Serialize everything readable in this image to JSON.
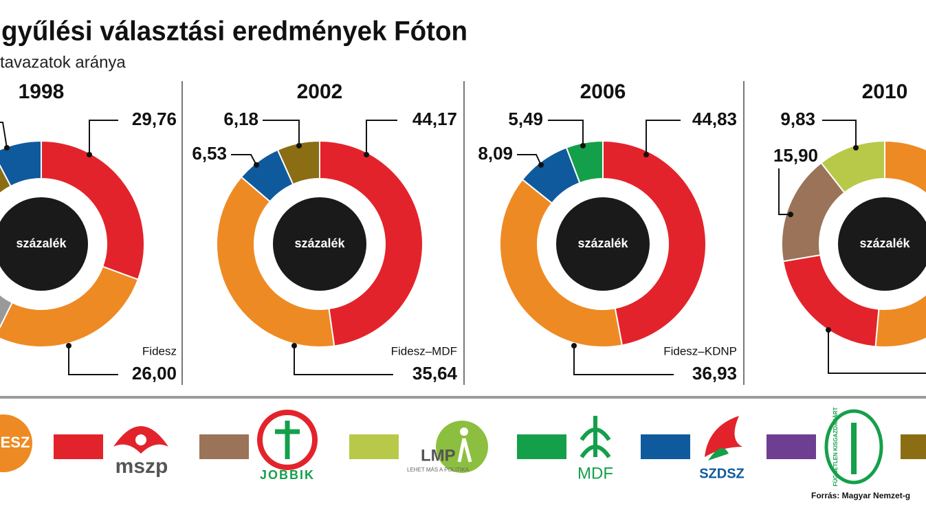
{
  "header": {
    "title": "gyűlési választási eredmények Fóton",
    "subtitle": "tavazatok aránya",
    "source": "Forrás: Magyar Nemzet-g"
  },
  "chart_data": [
    {
      "type": "pie",
      "title": "1998",
      "center_label": "százalék",
      "annotation": "Fidesz",
      "values": [
        29.76,
        26.0,
        31,
        3,
        7.5
      ],
      "value_labels": [
        "29,76",
        "26,00",
        null,
        null,
        null
      ],
      "colors": [
        "#e3232b",
        "#ee8a23",
        "#999999",
        "#8b6d14",
        "#0f5a9c"
      ]
    },
    {
      "type": "pie",
      "title": "2002",
      "center_label": "százalék",
      "annotation": "Fidesz–MDF",
      "values": [
        44.17,
        35.64,
        6.53,
        6.18
      ],
      "value_labels": [
        "44,17",
        "35,64",
        "6,53",
        "6,18"
      ],
      "colors": [
        "#e3232b",
        "#ee8a23",
        "#0f5a9c",
        "#8b6d14"
      ]
    },
    {
      "type": "pie",
      "title": "2006",
      "center_label": "százalék",
      "annotation": "Fidesz–KDNP",
      "values": [
        44.83,
        36.93,
        8.09,
        5.49
      ],
      "value_labels": [
        "44,83",
        "36,93",
        "8,09",
        "5,49"
      ],
      "colors": [
        "#e3232b",
        "#ee8a23",
        "#0f5a9c",
        "#14a04a"
      ]
    },
    {
      "type": "pie",
      "title": "2010",
      "center_label": "százalék",
      "values": [
        47.8,
        19.4,
        15.9,
        9.83
      ],
      "value_labels": [
        null,
        null,
        "15,90",
        "9,83"
      ],
      "colors": [
        "#ee8a23",
        "#e3232b",
        "#9a7358",
        "#b8c94a"
      ]
    }
  ],
  "legend": [
    {
      "color": "#ee8a23",
      "logo_text": "ESZ"
    },
    {
      "color": "#e3232b",
      "logo_text": "mszp"
    },
    {
      "color": "#9a7358",
      "logo_text": "JOBBIK"
    },
    {
      "color": "#b8c94a",
      "logo_text": "LMP",
      "logo_subtext": "LEHET MÁS A POLITIKA"
    },
    {
      "color": "#14a04a",
      "logo_text": "MDF"
    },
    {
      "color": "#0f5a9c",
      "logo_text": "SZDSZ"
    },
    {
      "color": "#6d3e91",
      "logo_text": "FÜGGETLEN KISGAZDAPÁRT"
    },
    {
      "color": "#8b6d14"
    }
  ]
}
